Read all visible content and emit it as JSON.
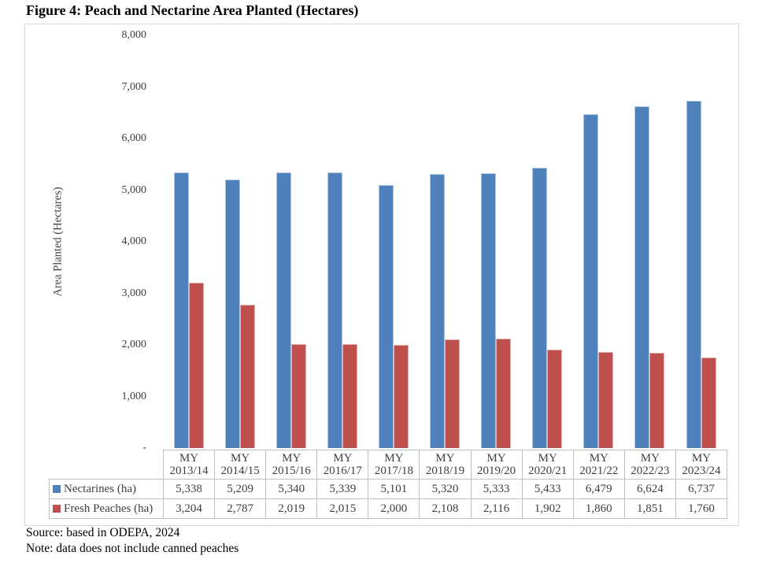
{
  "figure": {
    "title": "Figure 4: Peach and Nectarine Area Planted (Hectares)",
    "source": "Source: based in ODEPA, 2024",
    "note": "Note: data does not include canned peaches"
  },
  "chart_data": {
    "type": "bar",
    "title": "Figure 4: Peach and Nectarine Area Planted (Hectares)",
    "xlabel": "",
    "ylabel": "Area Planted (Hectares)",
    "ylim": [
      0,
      8000
    ],
    "ytick_interval": 1000,
    "ytick_labels": [
      "8,000",
      "7,000",
      "6,000",
      "5,000",
      "4,000",
      "3,000",
      "2,000",
      "1,000",
      "-"
    ],
    "grid": false,
    "legend_position": "data-table-left-stub",
    "data_table_shown": true,
    "categories": [
      "MY 2013/14",
      "MY 2014/15",
      "MY 2015/16",
      "MY 2016/17",
      "MY 2017/18",
      "MY 2018/19",
      "MY 2019/20",
      "MY 2020/21",
      "MY 2021/22",
      "MY 2022/23",
      "MY 2023/24"
    ],
    "series": [
      {
        "name": "Nectarines (ha)",
        "color": "#4F81BD",
        "values": [
          5338,
          5209,
          5340,
          5339,
          5101,
          5320,
          5333,
          5433,
          6479,
          6624,
          6737
        ]
      },
      {
        "name": "Fresh Peaches (ha)",
        "color": "#C0504D",
        "values": [
          3204,
          2787,
          2019,
          2015,
          2000,
          2108,
          2116,
          1902,
          1860,
          1851,
          1760
        ]
      }
    ]
  }
}
